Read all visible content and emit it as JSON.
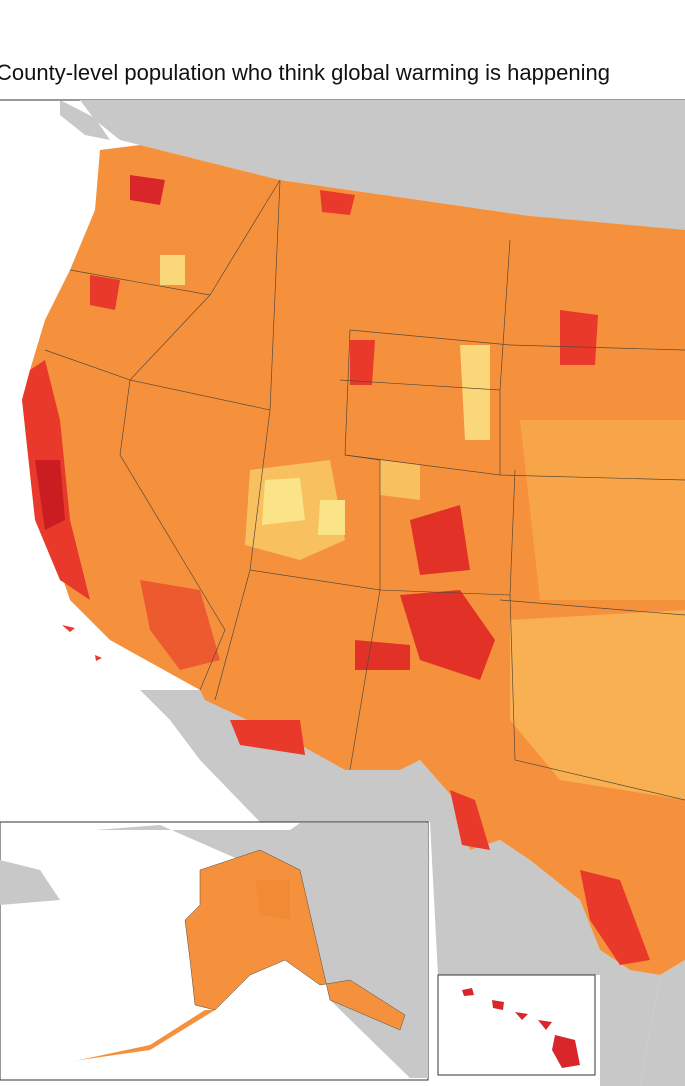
{
  "title": "County-level population who think global warming is happening"
}
